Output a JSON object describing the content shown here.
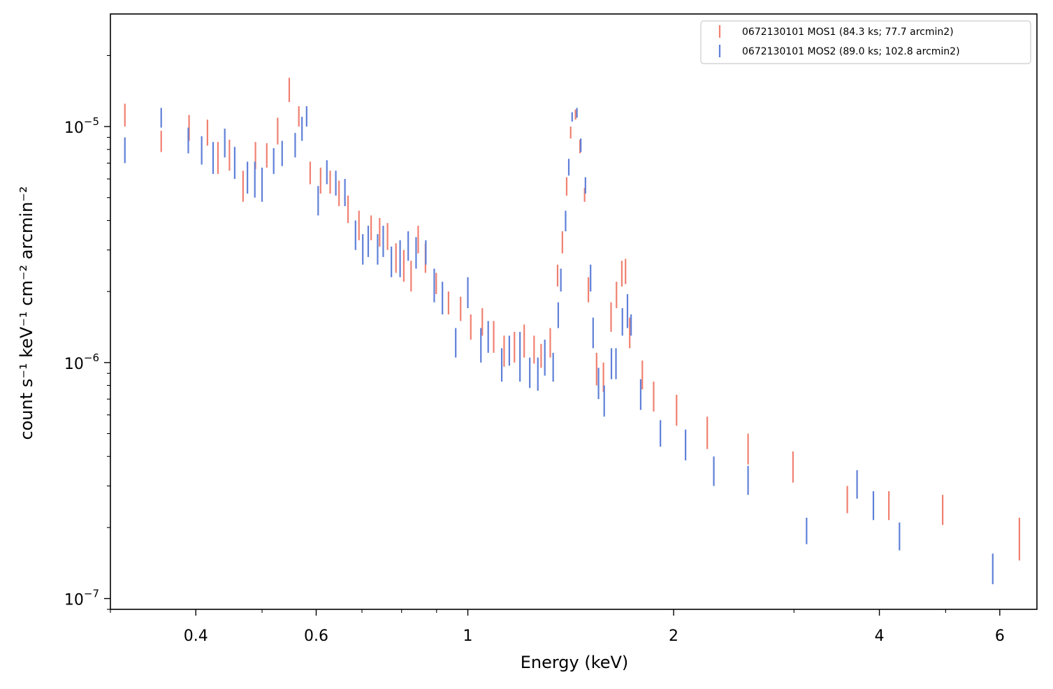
{
  "chart_data": {
    "type": "scatter",
    "title": "",
    "xlabel": "Energy (keV)",
    "ylabel": "count s⁻¹ keV⁻¹ cm⁻² arcmin⁻²",
    "xscale": "log",
    "yscale": "log",
    "xlim": [
      0.3,
      6.8
    ],
    "ylim": [
      9e-08,
      3e-05
    ],
    "grid": false,
    "legend_position": "top-right",
    "x_ticks": [
      {
        "value": 0.4,
        "label": "0.4"
      },
      {
        "value": 0.6,
        "label": "0.6"
      },
      {
        "value": 1,
        "label": "1"
      },
      {
        "value": 2,
        "label": "2"
      },
      {
        "value": 4,
        "label": "4"
      },
      {
        "value": 6,
        "label": "6"
      }
    ],
    "y_ticks": [
      {
        "value": 1e-07,
        "base": "10",
        "exp": "−7"
      },
      {
        "value": 1e-06,
        "base": "10",
        "exp": "−6"
      },
      {
        "value": 1e-05,
        "base": "10",
        "exp": "−5"
      }
    ],
    "series": [
      {
        "name": "0672130101 MOS1 (84.3 ks; 77.7 arcmin2)",
        "color": "#f08070",
        "points": [
          [
            0.315,
            1e-05,
            1.25e-05
          ],
          [
            0.356,
            7.8e-06,
            9.6e-06
          ],
          [
            0.391,
            8.7e-06,
            1.12e-05
          ],
          [
            0.416,
            8.3e-06,
            1.07e-05
          ],
          [
            0.431,
            6.3e-06,
            8.6e-06
          ],
          [
            0.448,
            6.5e-06,
            8.8e-06
          ],
          [
            0.469,
            4.8e-06,
            6.5e-06
          ],
          [
            0.489,
            6.6e-06,
            8.6e-06
          ],
          [
            0.508,
            6.7e-06,
            8.5e-06
          ],
          [
            0.527,
            8.4e-06,
            1.09e-05
          ],
          [
            0.548,
            1.27e-05,
            1.61e-05
          ],
          [
            0.566,
            1e-05,
            1.22e-05
          ],
          [
            0.588,
            5.7e-06,
            7.1e-06
          ],
          [
            0.609,
            5.2e-06,
            6.7e-06
          ],
          [
            0.629,
            5.2e-06,
            6.5e-06
          ],
          [
            0.648,
            4.6e-06,
            5.9e-06
          ],
          [
            0.668,
            3.9e-06,
            5.1e-06
          ],
          [
            0.693,
            3.3e-06,
            4.4e-06
          ],
          [
            0.722,
            3.3e-06,
            4.2e-06
          ],
          [
            0.743,
            3.1e-06,
            4.1e-06
          ],
          [
            0.763,
            3e-06,
            3.9e-06
          ],
          [
            0.785,
            2.4e-06,
            3.2e-06
          ],
          [
            0.806,
            2.2e-06,
            3e-06
          ],
          [
            0.826,
            2e-06,
            2.7e-06
          ],
          [
            0.846,
            2.9e-06,
            3.8e-06
          ],
          [
            0.867,
            2.4e-06,
            3.2e-06
          ],
          [
            0.899,
            1.95e-06,
            2.4e-06
          ],
          [
            0.937,
            1.6e-06,
            2e-06
          ],
          [
            0.976,
            1.5e-06,
            1.9e-06
          ],
          [
            1.01,
            1.25e-06,
            1.6e-06
          ],
          [
            1.05,
            1.3e-06,
            1.7e-06
          ],
          [
            1.091,
            1.1e-06,
            1.5e-06
          ],
          [
            1.13,
            9.6e-07,
            1.3e-06
          ],
          [
            1.17,
            1e-06,
            1.35e-06
          ],
          [
            1.209,
            1.05e-06,
            1.45e-06
          ],
          [
            1.25,
            9.9e-07,
            1.3e-06
          ],
          [
            1.28,
            9.5e-07,
            1.2e-06
          ],
          [
            1.32,
            1.05e-06,
            1.4e-06
          ],
          [
            1.353,
            2.1e-06,
            2.6e-06
          ],
          [
            1.375,
            2.9e-06,
            3.6e-06
          ],
          [
            1.395,
            5.1e-06,
            6.1e-06
          ],
          [
            1.414,
            8.9e-06,
            1e-05
          ],
          [
            1.437,
            1.07e-05,
            1.18e-05
          ],
          [
            1.459,
            7.7e-06,
            8.8e-06
          ],
          [
            1.482,
            4.8e-06,
            5.5e-06
          ],
          [
            1.501,
            1.8e-06,
            2.3e-06
          ],
          [
            1.543,
            8e-07,
            1.1e-06
          ],
          [
            1.579,
            7.5e-07,
            1e-06
          ],
          [
            1.62,
            1.35e-06,
            1.8e-06
          ],
          [
            1.65,
            1.7e-06,
            2.2e-06
          ],
          [
            1.68,
            2.1e-06,
            2.7e-06
          ],
          [
            1.701,
            2.15e-06,
            2.75e-06
          ],
          [
            1.725,
            1.15e-06,
            1.55e-06
          ],
          [
            1.8,
            7.7e-07,
            1.02e-06
          ],
          [
            1.87,
            6.2e-07,
            8.3e-07
          ],
          [
            2.02,
            5.4e-07,
            7.3e-07
          ],
          [
            2.24,
            4.3e-07,
            5.9e-07
          ],
          [
            2.57,
            3.7e-07,
            5e-07
          ],
          [
            2.99,
            3.1e-07,
            4.2e-07
          ],
          [
            3.59,
            2.3e-07,
            3e-07
          ],
          [
            4.13,
            2.15e-07,
            2.85e-07
          ],
          [
            4.95,
            2.05e-07,
            2.75e-07
          ],
          [
            6.41,
            1.45e-07,
            2.2e-07
          ]
        ]
      },
      {
        "name": "0672130101 MOS2 (89.0 ks; 102.8 arcmin2)",
        "color": "#5f80d8",
        "points": [
          [
            0.315,
            7e-06,
            9e-06
          ],
          [
            0.356,
            9.9e-06,
            1.2e-05
          ],
          [
            0.39,
            7.7e-06,
            9.9e-06
          ],
          [
            0.408,
            6.9e-06,
            9.1e-06
          ],
          [
            0.424,
            6.3e-06,
            8.6e-06
          ],
          [
            0.441,
            7.4e-06,
            9.8e-06
          ],
          [
            0.456,
            6e-06,
            8.2e-06
          ],
          [
            0.476,
            5.2e-06,
            7.1e-06
          ],
          [
            0.488,
            5e-06,
            7.1e-06
          ],
          [
            0.5,
            4.8e-06,
            6.7e-06
          ],
          [
            0.52,
            6.3e-06,
            8.1e-06
          ],
          [
            0.535,
            6.8e-06,
            8.7e-06
          ],
          [
            0.559,
            7.4e-06,
            9.4e-06
          ],
          [
            0.572,
            8.7e-06,
            1.1e-05
          ],
          [
            0.581,
            1e-05,
            1.22e-05
          ],
          [
            0.604,
            4.2e-06,
            5.6e-06
          ],
          [
            0.622,
            5.7e-06,
            7.2e-06
          ],
          [
            0.641,
            5.1e-06,
            6.5e-06
          ],
          [
            0.661,
            4.6e-06,
            6e-06
          ],
          [
            0.685,
            3e-06,
            4e-06
          ],
          [
            0.702,
            2.6e-06,
            3.5e-06
          ],
          [
            0.715,
            2.8e-06,
            3.8e-06
          ],
          [
            0.738,
            2.6e-06,
            3.5e-06
          ],
          [
            0.752,
            2.8e-06,
            3.8e-06
          ],
          [
            0.773,
            2.3e-06,
            3.1e-06
          ],
          [
            0.796,
            2.3e-06,
            3.3e-06
          ],
          [
            0.818,
            2.7e-06,
            3.6e-06
          ],
          [
            0.84,
            2.5e-06,
            3.4e-06
          ],
          [
            0.868,
            2.6e-06,
            3.3e-06
          ],
          [
            0.893,
            1.8e-06,
            2.5e-06
          ],
          [
            0.918,
            1.6e-06,
            2.2e-06
          ],
          [
            0.96,
            1.05e-06,
            1.4e-06
          ],
          [
            1.0,
            1.7e-06,
            2.3e-06
          ],
          [
            1.045,
            1e-06,
            1.4e-06
          ],
          [
            1.071,
            1.1e-06,
            1.5e-06
          ],
          [
            1.121,
            8.3e-07,
            1.15e-06
          ],
          [
            1.15,
            9.7e-07,
            1.3e-06
          ],
          [
            1.192,
            8.3e-07,
            1.35e-06
          ],
          [
            1.232,
            7.8e-07,
            1.05e-06
          ],
          [
            1.266,
            7.6e-07,
            1.05e-06
          ],
          [
            1.296,
            8.8e-07,
            1.25e-06
          ],
          [
            1.333,
            8.3e-07,
            1.1e-06
          ],
          [
            1.356,
            1.4e-06,
            1.8e-06
          ],
          [
            1.368,
            2e-06,
            2.5e-06
          ],
          [
            1.39,
            3.6e-06,
            4.4e-06
          ],
          [
            1.405,
            6.2e-06,
            7.3e-06
          ],
          [
            1.421,
            1.05e-05,
            1.15e-05
          ],
          [
            1.444,
            1.09e-05,
            1.2e-05
          ],
          [
            1.463,
            7.8e-06,
            8.9e-06
          ],
          [
            1.486,
            5.2e-06,
            6.1e-06
          ],
          [
            1.512,
            2e-06,
            2.6e-06
          ],
          [
            1.525,
            1.15e-06,
            1.55e-06
          ],
          [
            1.553,
            7e-07,
            9.5e-07
          ],
          [
            1.583,
            5.9e-07,
            8e-07
          ],
          [
            1.622,
            8.5e-07,
            1.15e-06
          ],
          [
            1.647,
            8.5e-07,
            1.15e-06
          ],
          [
            1.683,
            1.3e-06,
            1.7e-06
          ],
          [
            1.712,
            1.4e-06,
            1.95e-06
          ],
          [
            1.733,
            1.3e-06,
            1.6e-06
          ],
          [
            1.79,
            6.3e-07,
            8.5e-07
          ],
          [
            1.913,
            4.4e-07,
            5.7e-07
          ],
          [
            2.082,
            3.85e-07,
            5.2e-07
          ],
          [
            2.29,
            3e-07,
            4e-07
          ],
          [
            2.57,
            2.75e-07,
            3.65e-07
          ],
          [
            3.13,
            1.7e-07,
            2.2e-07
          ],
          [
            3.71,
            2.65e-07,
            3.5e-07
          ],
          [
            3.92,
            2.15e-07,
            2.85e-07
          ],
          [
            4.28,
            1.6e-07,
            2.1e-07
          ],
          [
            5.86,
            1.15e-07,
            1.55e-07
          ]
        ]
      }
    ]
  }
}
